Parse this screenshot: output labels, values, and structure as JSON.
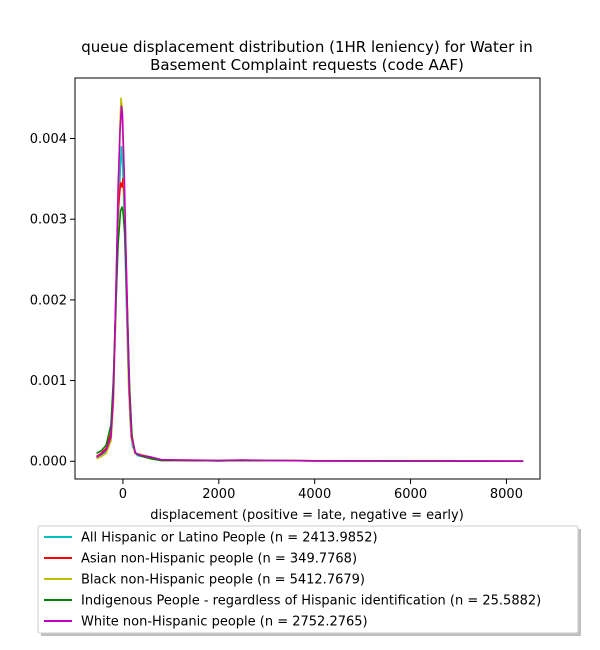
{
  "chart_data": {
    "type": "line",
    "title_lines": [
      "queue displacement distribution (1HR leniency) for Water in",
      "Basement Complaint  requests (code AAF)"
    ],
    "xlabel": "displacement (positive = late, negative = early)",
    "ylabel": "",
    "xlim": [
      -1000,
      8700
    ],
    "ylim": [
      -0.00022,
      0.00475
    ],
    "xticks": [
      0,
      2000,
      4000,
      6000,
      8000
    ],
    "xtick_labels": [
      "0",
      "2000",
      "4000",
      "6000",
      "8000"
    ],
    "yticks": [
      0.0,
      0.001,
      0.002,
      0.003,
      0.004
    ],
    "ytick_labels": [
      "0.000",
      "0.001",
      "0.002",
      "0.003",
      "0.004"
    ],
    "grid": false,
    "legend_position": "below plot",
    "series": [
      {
        "name": "All Hispanic or Latino People (n = 2413.9852)",
        "color": "#00bfbf",
        "points": [
          [
            -550,
            4e-05
          ],
          [
            -450,
            7e-05
          ],
          [
            -350,
            0.00012
          ],
          [
            -250,
            0.0003
          ],
          [
            -200,
            0.0008
          ],
          [
            -150,
            0.0018
          ],
          [
            -100,
            0.003
          ],
          [
            -50,
            0.0037
          ],
          [
            -30,
            0.0039
          ],
          [
            0,
            0.0036
          ],
          [
            50,
            0.0025
          ],
          [
            100,
            0.0013
          ],
          [
            150,
            0.0005
          ],
          [
            200,
            0.00018
          ],
          [
            300,
            7e-05
          ],
          [
            500,
            5e-05
          ],
          [
            700,
            2e-05
          ],
          [
            1000,
            1.5e-05
          ],
          [
            1500,
            1e-05
          ],
          [
            2000,
            5e-06
          ],
          [
            2500,
            1e-05
          ],
          [
            3000,
            8e-06
          ],
          [
            4000,
            5e-06
          ],
          [
            5000,
            3e-06
          ],
          [
            6000,
            2e-06
          ],
          [
            7000,
            2e-06
          ],
          [
            8350,
            1e-06
          ]
        ]
      },
      {
        "name": "Asian non-Hispanic people (n = 349.7768)",
        "color": "#ff0000",
        "points": [
          [
            -550,
            6e-05
          ],
          [
            -450,
            0.0001
          ],
          [
            -350,
            0.00016
          ],
          [
            -250,
            0.00035
          ],
          [
            -200,
            0.0009
          ],
          [
            -150,
            0.002
          ],
          [
            -100,
            0.0031
          ],
          [
            -50,
            0.00345
          ],
          [
            -20,
            0.0034
          ],
          [
            0,
            0.0035
          ],
          [
            30,
            0.00325
          ],
          [
            80,
            0.0022
          ],
          [
            130,
            0.001
          ],
          [
            180,
            0.00035
          ],
          [
            250,
            0.0001
          ],
          [
            400,
            6e-05
          ],
          [
            600,
            3e-05
          ],
          [
            800,
            1e-05
          ],
          [
            1200,
            1e-05
          ],
          [
            2000,
            5e-06
          ],
          [
            2500,
            1e-05
          ],
          [
            3000,
            1e-05
          ],
          [
            4000,
            5e-06
          ],
          [
            5000,
            3e-06
          ],
          [
            6000,
            2e-06
          ],
          [
            7000,
            2e-06
          ],
          [
            8350,
            1e-06
          ]
        ]
      },
      {
        "name": "Black non-Hispanic people (n = 5412.7679)",
        "color": "#bfbf00",
        "points": [
          [
            -550,
            3e-05
          ],
          [
            -450,
            6e-05
          ],
          [
            -350,
            0.0001
          ],
          [
            -250,
            0.00025
          ],
          [
            -200,
            0.0007
          ],
          [
            -150,
            0.0018
          ],
          [
            -100,
            0.0033
          ],
          [
            -60,
            0.0042
          ],
          [
            -40,
            0.0045
          ],
          [
            -20,
            0.0044
          ],
          [
            20,
            0.0036
          ],
          [
            70,
            0.0022
          ],
          [
            120,
            0.0009
          ],
          [
            170,
            0.0003
          ],
          [
            250,
            0.0001
          ],
          [
            400,
            8e-05
          ],
          [
            600,
            5e-05
          ],
          [
            800,
            2e-05
          ],
          [
            1200,
            1.5e-05
          ],
          [
            2000,
            1e-05
          ],
          [
            2500,
            1.5e-05
          ],
          [
            3000,
            1e-05
          ],
          [
            4000,
            6e-06
          ],
          [
            5000,
            4e-06
          ],
          [
            6000,
            3e-06
          ],
          [
            7000,
            2e-06
          ],
          [
            8350,
            1e-06
          ]
        ]
      },
      {
        "name": "Indigenous People - regardless of Hispanic identification (n = 25.5882)",
        "color": "#008000",
        "points": [
          [
            -550,
            0.0001
          ],
          [
            -450,
            0.00013
          ],
          [
            -350,
            0.0002
          ],
          [
            -250,
            0.00045
          ],
          [
            -200,
            0.001
          ],
          [
            -150,
            0.0019
          ],
          [
            -100,
            0.0027
          ],
          [
            -50,
            0.0031
          ],
          [
            -20,
            0.00315
          ],
          [
            0,
            0.0031
          ],
          [
            40,
            0.0028
          ],
          [
            90,
            0.0019
          ],
          [
            140,
            0.0009
          ],
          [
            190,
            0.0003
          ],
          [
            260,
            0.0001
          ],
          [
            400,
            6e-05
          ],
          [
            600,
            3e-05
          ],
          [
            800,
            1e-05
          ],
          [
            1200,
            1e-05
          ],
          [
            2000,
            5e-06
          ],
          [
            2500,
            1e-05
          ],
          [
            3000,
            8e-06
          ],
          [
            4000,
            5e-06
          ],
          [
            5000,
            3e-06
          ],
          [
            6000,
            2e-06
          ],
          [
            7000,
            2e-06
          ],
          [
            8350,
            1e-06
          ]
        ]
      },
      {
        "name": "White non-Hispanic people (n = 2752.2765)",
        "color": "#bf00bf",
        "points": [
          [
            -550,
            5e-05
          ],
          [
            -450,
            9e-05
          ],
          [
            -350,
            0.00014
          ],
          [
            -250,
            0.0003
          ],
          [
            -200,
            0.0008
          ],
          [
            -150,
            0.002
          ],
          [
            -100,
            0.0034
          ],
          [
            -60,
            0.0041
          ],
          [
            -30,
            0.0044
          ],
          [
            -10,
            0.0043
          ],
          [
            30,
            0.0035
          ],
          [
            80,
            0.0021
          ],
          [
            130,
            0.0009
          ],
          [
            180,
            0.0003
          ],
          [
            260,
            0.0001
          ],
          [
            400,
            7e-05
          ],
          [
            600,
            5e-05
          ],
          [
            800,
            2e-05
          ],
          [
            1200,
            1.5e-05
          ],
          [
            2000,
            1e-05
          ],
          [
            2500,
            1.5e-05
          ],
          [
            3000,
            1e-05
          ],
          [
            4000,
            6e-06
          ],
          [
            5000,
            4e-06
          ],
          [
            6000,
            3e-06
          ],
          [
            7000,
            2e-06
          ],
          [
            8350,
            1e-06
          ]
        ]
      }
    ]
  }
}
